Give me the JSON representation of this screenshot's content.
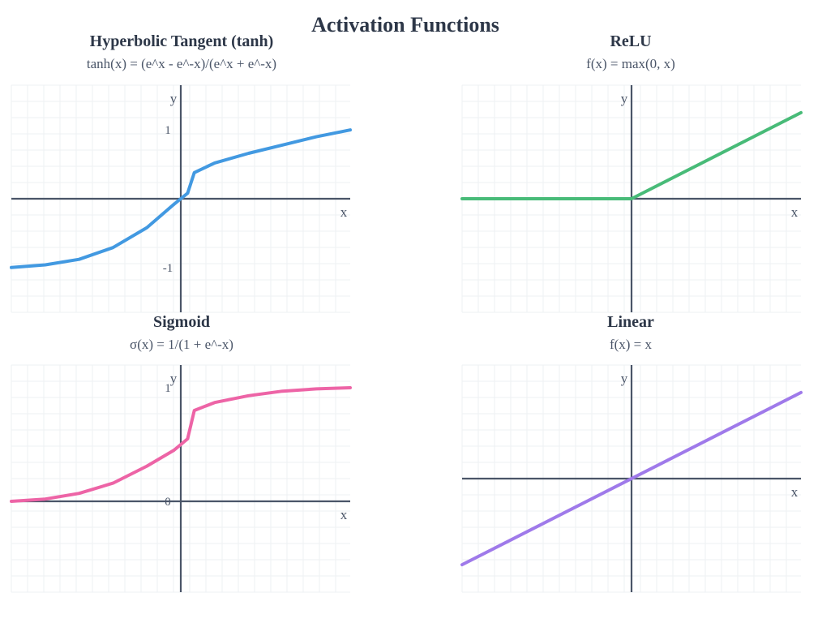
{
  "title": "Activation Functions",
  "chart_data": [
    {
      "type": "line",
      "title": "Hyperbolic Tangent (tanh)",
      "subtitle": "tanh(x) = (e^x - e^-x)/(e^x + e^-x)",
      "xlabel": "x",
      "ylabel": "y",
      "color": "#4299e1",
      "xlim": [
        -2.5,
        2.5
      ],
      "ylim": [
        -1.65,
        1.65
      ],
      "yticks": [
        {
          "value": 1,
          "label": "1"
        },
        {
          "value": -1,
          "label": "-1"
        }
      ],
      "grid": true,
      "series": [
        {
          "x": [
            -2.5,
            -2.0,
            -1.5,
            -1.0,
            -0.5,
            -0.1,
            0,
            0.1,
            0.2,
            0.5,
            1.0,
            1.5,
            2.0,
            2.5
          ],
          "y": [
            -1.0,
            -0.96,
            -0.88,
            -0.71,
            -0.42,
            -0.08,
            0.0,
            0.08,
            0.38,
            0.52,
            0.66,
            0.78,
            0.9,
            1.0
          ]
        }
      ]
    },
    {
      "type": "line",
      "title": "ReLU",
      "subtitle": "f(x) = max(0, x)",
      "xlabel": "x",
      "ylabel": "y",
      "color": "#48bb78",
      "xlim": [
        -2.5,
        2.5
      ],
      "ylim": [
        -1.65,
        1.65
      ],
      "yticks": [],
      "grid": true,
      "series": [
        {
          "x": [
            -2.5,
            0,
            2.5
          ],
          "y": [
            0,
            0,
            1.25
          ]
        }
      ]
    },
    {
      "type": "line",
      "title": "Sigmoid",
      "subtitle": "σ(x) = 1/(1 + e^-x)",
      "xlabel": "x",
      "ylabel": "y",
      "color": "#ed64a6",
      "xlim": [
        -2.5,
        2.5
      ],
      "ylim": [
        -0.8,
        1.2
      ],
      "yticks": [
        {
          "value": 1,
          "label": "1"
        },
        {
          "value": 0,
          "label": "0"
        }
      ],
      "grid": true,
      "series": [
        {
          "x": [
            -2.5,
            -2.0,
            -1.5,
            -1.0,
            -0.5,
            -0.1,
            0,
            0.1,
            0.2,
            0.5,
            1.0,
            1.5,
            2.0,
            2.5
          ],
          "y": [
            0.0,
            0.02,
            0.07,
            0.16,
            0.31,
            0.45,
            0.5,
            0.55,
            0.8,
            0.87,
            0.93,
            0.97,
            0.99,
            1.0
          ]
        }
      ]
    },
    {
      "type": "line",
      "title": "Linear",
      "subtitle": "f(x) = x",
      "xlabel": "x",
      "ylabel": "y",
      "color": "#9f7aea",
      "xlim": [
        -2.5,
        2.5
      ],
      "ylim": [
        -1.65,
        1.65
      ],
      "yticks": [],
      "grid": true,
      "series": [
        {
          "x": [
            -2.5,
            2.5
          ],
          "y": [
            -1.25,
            1.25
          ]
        }
      ]
    }
  ]
}
